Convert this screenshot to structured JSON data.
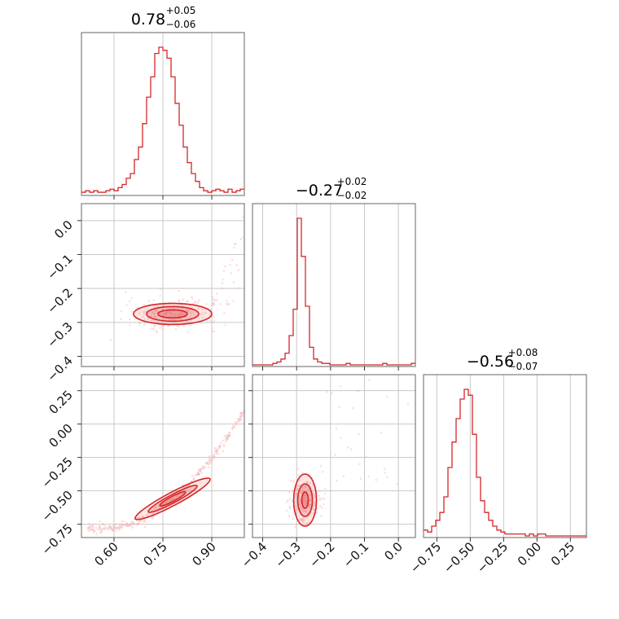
{
  "colors": {
    "line": "#d62728",
    "fill": "#f4a6a6",
    "fill_dark": "#e35b5b",
    "grid": "#c8c8c8",
    "frame": "#666666"
  },
  "chart_data": {
    "type": "corner",
    "title": "",
    "params": [
      {
        "median": 0.78,
        "plus": 0.05,
        "minus": 0.06,
        "title_main": "0.78",
        "title_plus": "+0.05",
        "title_minus": "−0.06",
        "range": [
          0.5,
          1.0
        ],
        "ticks": [
          0.6,
          0.75,
          0.9
        ],
        "tick_labels": [
          "0.60",
          "0.75",
          "0.90"
        ]
      },
      {
        "median": -0.27,
        "plus": 0.02,
        "minus": 0.02,
        "title_main": "−0.27",
        "title_plus": "+0.02",
        "title_minus": "−0.02",
        "range": [
          -0.43,
          0.05
        ],
        "ticks": [
          -0.4,
          -0.3,
          -0.2,
          -0.1,
          0.0
        ],
        "tick_labels": [
          "−0.4",
          "−0.3",
          "−0.2",
          "−0.1",
          "0.0"
        ]
      },
      {
        "median": -0.56,
        "plus": 0.08,
        "minus": 0.07,
        "title_main": "−0.56",
        "title_plus": "+0.08",
        "title_minus": "−0.07",
        "range": [
          -0.85,
          0.37
        ],
        "ticks": [
          -0.75,
          -0.5,
          -0.25,
          0.0,
          0.25
        ],
        "tick_labels": [
          "−0.75",
          "−0.50",
          "−0.25",
          "0.00",
          "0.25"
        ]
      }
    ],
    "histograms": [
      {
        "param": 0,
        "bin_start": 0.5,
        "bin_width": 0.0125,
        "counts": [
          1,
          2,
          1,
          2,
          1,
          1,
          2,
          3,
          2,
          4,
          6,
          10,
          13,
          22,
          30,
          45,
          62,
          75,
          90,
          94,
          92,
          87,
          75,
          58,
          44,
          30,
          20,
          13,
          8,
          4,
          2,
          1,
          2,
          3,
          2,
          1,
          3,
          1,
          2,
          3
        ]
      },
      {
        "param": 1,
        "bin_start": -0.43,
        "bin_width": 0.012,
        "counts": [
          0,
          0,
          0,
          0,
          0,
          1,
          2,
          4,
          8,
          20,
          38,
          100,
          74,
          40,
          12,
          4,
          2,
          1,
          1,
          0,
          0,
          0,
          0,
          1,
          0,
          0,
          0,
          0,
          0,
          0,
          0,
          0,
          1,
          0,
          0,
          0,
          0,
          0,
          0,
          1
        ]
      },
      {
        "param": 2,
        "bin_start": -0.85,
        "bin_width": 0.0305,
        "counts": [
          3,
          2,
          5,
          8,
          12,
          20,
          35,
          48,
          60,
          70,
          75,
          72,
          52,
          30,
          18,
          12,
          8,
          5,
          3,
          2,
          1,
          1,
          1,
          1,
          1,
          0,
          1,
          0,
          1,
          1,
          0,
          0,
          0,
          0,
          0,
          0,
          0,
          0,
          0,
          0
        ]
      }
    ],
    "pairs": [
      {
        "x_param": 0,
        "y_param": 1
      },
      {
        "x_param": 0,
        "y_param": 2
      },
      {
        "x_param": 1,
        "y_param": 2
      }
    ],
    "grid": true
  }
}
